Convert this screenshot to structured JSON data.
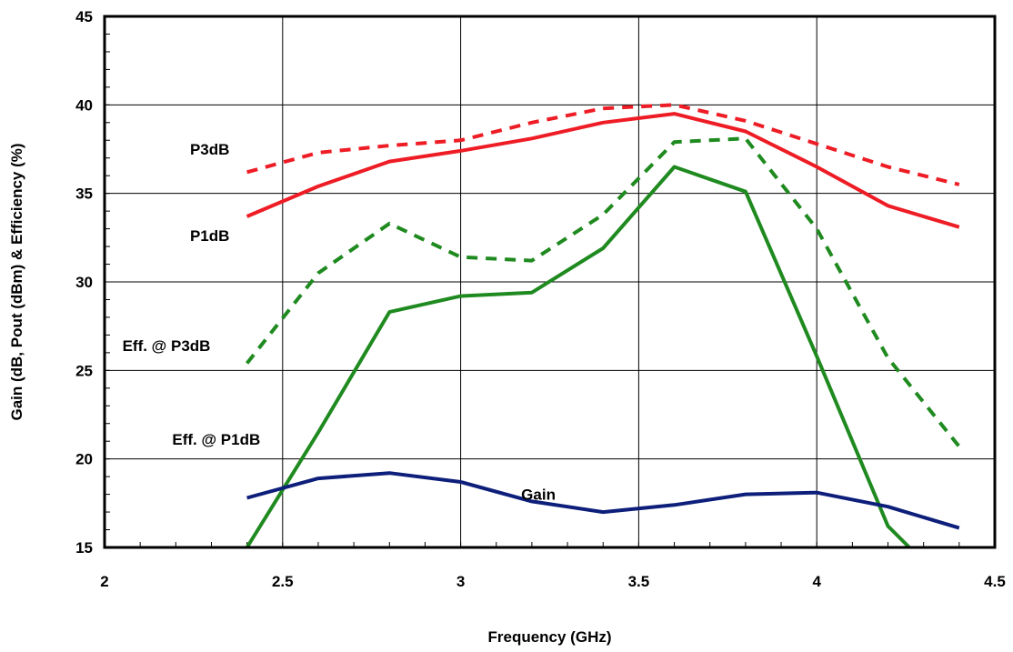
{
  "chart_data": {
    "type": "line",
    "xlabel": "Frequency (GHz)",
    "ylabel": "Gain (dB, Pout (dBm) & Efficiency (%)",
    "xlim": [
      2,
      4.5
    ],
    "ylim": [
      15,
      45
    ],
    "xticks": [
      2,
      2.5,
      3,
      3.5,
      4,
      4.5
    ],
    "yticks": [
      15,
      20,
      25,
      30,
      35,
      40,
      45
    ],
    "xtick_labels": [
      "2",
      "2.5",
      "3",
      "3.5",
      "4",
      "4.5"
    ],
    "ytick_labels": [
      "15",
      "20",
      "25",
      "30",
      "35",
      "40",
      "45"
    ],
    "grid": true,
    "series": [
      {
        "name": "P3dB",
        "color": "#ee1c25",
        "style": "dashed",
        "x": [
          2.4,
          2.6,
          2.8,
          3.0,
          3.2,
          3.4,
          3.6,
          3.8,
          4.0,
          4.2,
          4.4
        ],
        "y": [
          36.2,
          37.3,
          37.7,
          38.0,
          39.0,
          39.8,
          40.0,
          39.1,
          37.8,
          36.5,
          35.5
        ]
      },
      {
        "name": "P1dB",
        "color": "#ee1c25",
        "style": "solid",
        "x": [
          2.4,
          2.6,
          2.8,
          3.0,
          3.2,
          3.4,
          3.6,
          3.8,
          4.0,
          4.2,
          4.4
        ],
        "y": [
          33.7,
          35.4,
          36.8,
          37.4,
          38.1,
          39.0,
          39.5,
          38.5,
          36.5,
          34.3,
          33.1
        ]
      },
      {
        "name": "Eff. @ P3dB",
        "color": "#1f8a1f",
        "style": "dashed",
        "x": [
          2.4,
          2.6,
          2.8,
          3.0,
          3.2,
          3.4,
          3.6,
          3.8,
          4.0,
          4.2,
          4.4
        ],
        "y": [
          25.4,
          30.5,
          33.3,
          31.4,
          31.2,
          33.8,
          37.9,
          38.1,
          33.0,
          25.7,
          20.7
        ]
      },
      {
        "name": "Eff. @ P1dB",
        "color": "#1f8a1f",
        "style": "solid",
        "x": [
          2.4,
          2.6,
          2.8,
          3.0,
          3.2,
          3.4,
          3.6,
          3.8,
          4.0,
          4.2,
          4.26
        ],
        "y": [
          15.0,
          21.5,
          28.3,
          29.2,
          29.4,
          31.9,
          36.5,
          35.1,
          25.8,
          16.2,
          15.0
        ]
      },
      {
        "name": "Gain",
        "color": "#0d1f7a",
        "style": "solid",
        "x": [
          2.4,
          2.6,
          2.8,
          3.0,
          3.2,
          3.4,
          3.6,
          3.8,
          4.0,
          4.2,
          4.4
        ],
        "y": [
          17.8,
          18.9,
          19.2,
          18.7,
          17.6,
          17.0,
          17.4,
          18.0,
          18.1,
          17.3,
          16.1
        ]
      }
    ],
    "annotations": [
      {
        "text": "P3dB",
        "x": 2.24,
        "y": 37.2
      },
      {
        "text": "P1dB",
        "x": 2.24,
        "y": 32.3
      },
      {
        "text": "Eff. @ P3dB",
        "x": 2.05,
        "y": 26.1
      },
      {
        "text": "Eff. @ P1dB",
        "x": 2.19,
        "y": 20.8
      },
      {
        "text": "Gain",
        "x": 3.17,
        "y": 17.7
      }
    ]
  }
}
